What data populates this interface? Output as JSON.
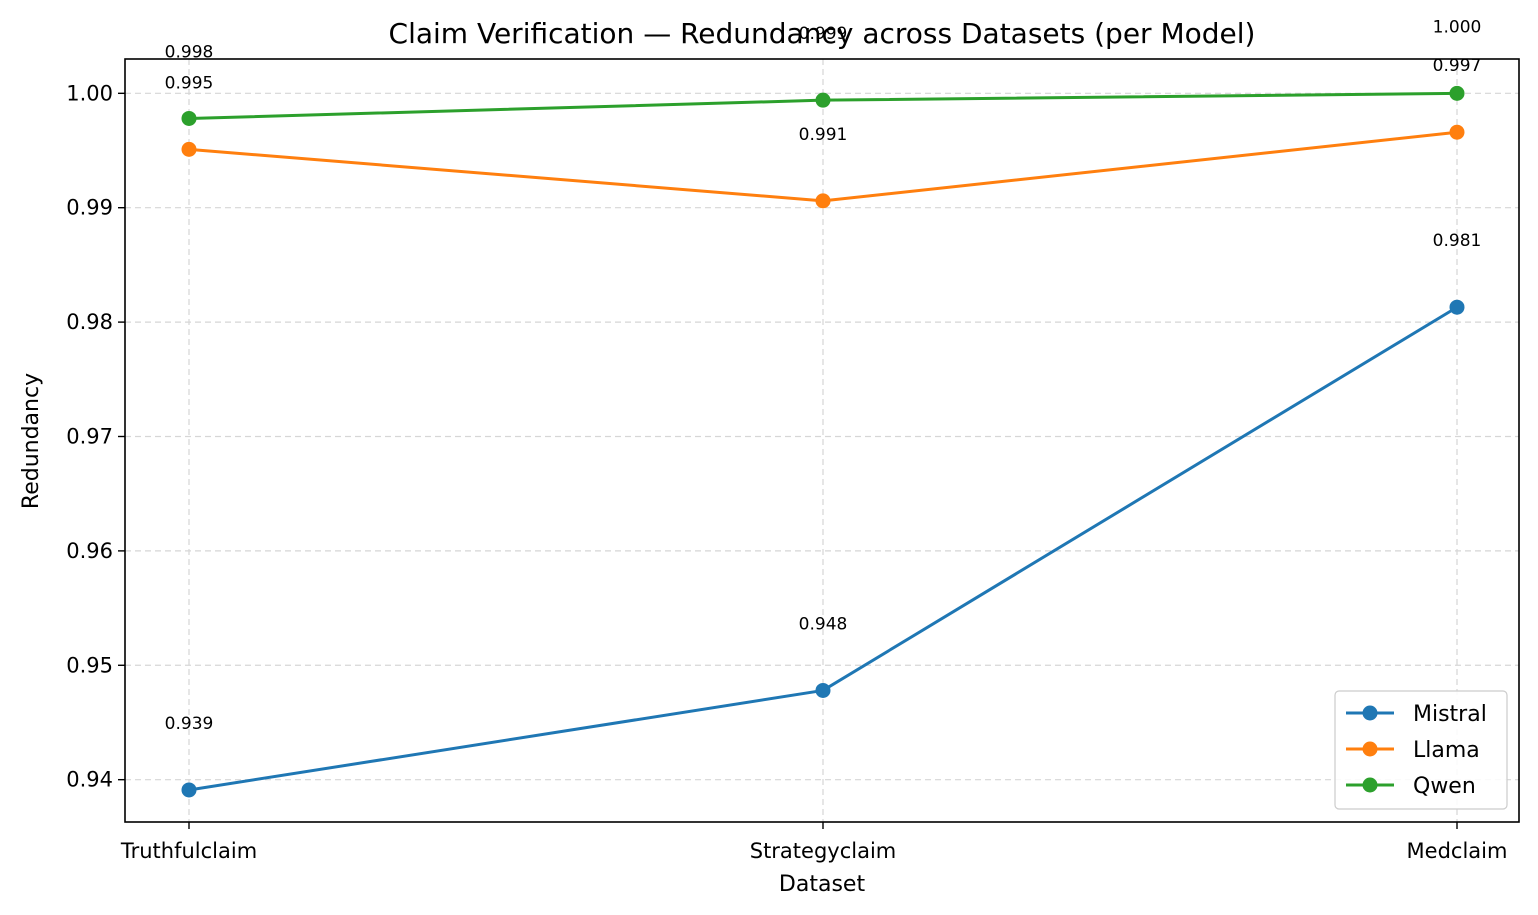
{
  "chart_data": {
    "type": "line",
    "title": "Claim Verification — Redundancy across Datasets (per Model)",
    "xlabel": "Dataset",
    "ylabel": "Redundancy",
    "categories": [
      "Truthfulclaim",
      "Strategyclaim",
      "Medclaim"
    ],
    "ylim": [
      0.9363,
      1.003
    ],
    "yticks": [
      0.94,
      0.95,
      0.96,
      0.97,
      0.98,
      0.99,
      1.0
    ],
    "ytick_labels": [
      "0.94",
      "0.95",
      "0.96",
      "0.97",
      "0.98",
      "0.99",
      "1.00"
    ],
    "grid": true,
    "legend_position": "lower-right",
    "series": [
      {
        "name": "Mistral",
        "color": "#1f77b4",
        "values": [
          0.9391,
          0.9478,
          0.9813
        ],
        "labels": [
          "0.939",
          "0.948",
          "0.981"
        ]
      },
      {
        "name": "Llama",
        "color": "#ff7f0e",
        "values": [
          0.9951,
          0.9906,
          0.9966
        ],
        "labels": [
          "0.995",
          "0.991",
          "0.997"
        ]
      },
      {
        "name": "Qwen",
        "color": "#2ca02c",
        "values": [
          0.9978,
          0.9994,
          1.0
        ],
        "labels": [
          "0.998",
          "0.999",
          "1.000"
        ]
      }
    ]
  }
}
